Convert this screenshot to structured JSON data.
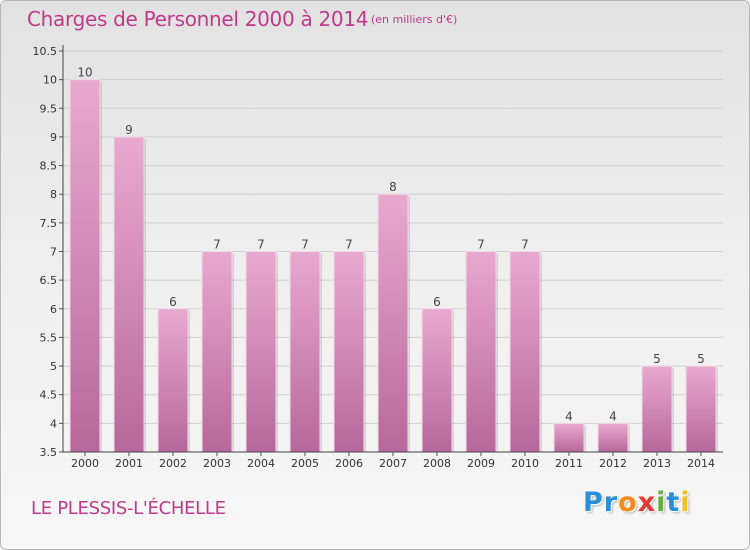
{
  "header": {
    "title": "Charges de Personnel 2000 à 2014",
    "subtitle": "(en milliers d'€)"
  },
  "footer": {
    "commune": "LE PLESSIS-L'ÉCHELLE",
    "logo_letters": [
      "P",
      "r",
      "o",
      "x",
      "i",
      "t",
      "i"
    ],
    "logo_colors": [
      "#2a8fd6",
      "#2a8fd6",
      "#f28c1c",
      "#e33a2f",
      "#62b23a",
      "#2a8fd6",
      "#f2c21c"
    ]
  },
  "colors": {
    "bar_top": "#e8a9cf",
    "bar_bottom": "#b7689a",
    "title": "#c03a8a",
    "grid": "#d0d0d0"
  },
  "chart_data": {
    "type": "bar",
    "categories": [
      "2000",
      "2001",
      "2002",
      "2003",
      "2004",
      "2005",
      "2006",
      "2007",
      "2008",
      "2009",
      "2010",
      "2011",
      "2012",
      "2013",
      "2014"
    ],
    "values": [
      10,
      9,
      6,
      7,
      7,
      7,
      7,
      8,
      6,
      7,
      7,
      4,
      4,
      5,
      5
    ],
    "ylim": [
      3.5,
      10.5
    ],
    "yticks": [
      "3.5",
      "4",
      "4.5",
      "5",
      "5.5",
      "6",
      "6.5",
      "7",
      "7.5",
      "8",
      "8.5",
      "9",
      "9.5",
      "10",
      "10.5"
    ],
    "grid": true
  }
}
